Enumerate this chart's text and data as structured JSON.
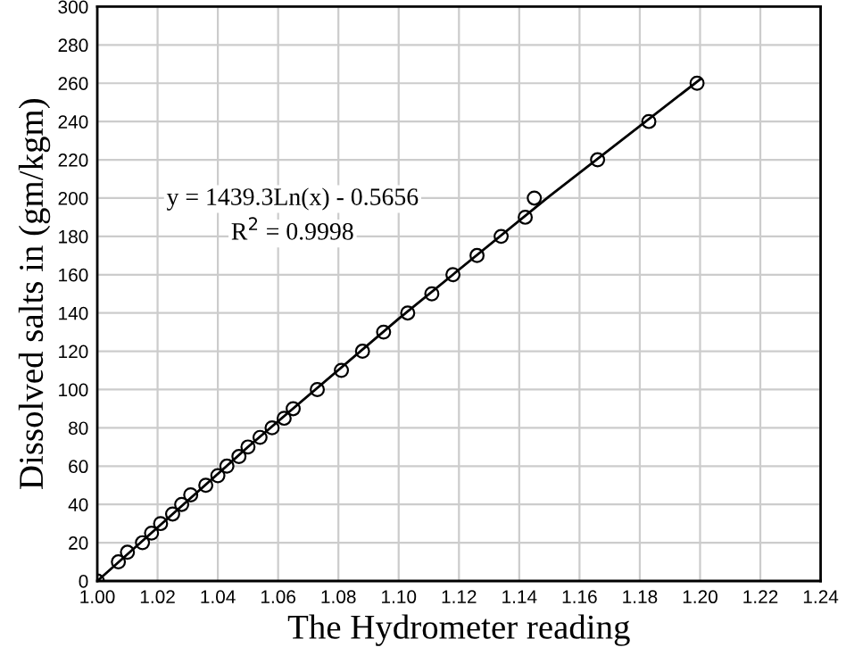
{
  "chart_data": {
    "type": "scatter",
    "xlabel": "The Hydrometer reading",
    "ylabel": "Dissolved salts in (gm/kgm)",
    "annotations": [
      "y = 1439.3Ln(x) - 0.5656",
      "R$^{2}$ = 0.9998"
    ],
    "series": [
      {
        "type": "scatter",
        "color": "#000000",
        "marker": "circle",
        "x": [
          1.0,
          1.007,
          1.01,
          1.015,
          1.018,
          1.021,
          1.025,
          1.028,
          1.031,
          1.036,
          1.04,
          1.043,
          1.047,
          1.05,
          1.054,
          1.058,
          1.062,
          1.065,
          1.073,
          1.081,
          1.088,
          1.095,
          1.103,
          1.111,
          1.118,
          1.126,
          1.134,
          1.142,
          1.145,
          1.166,
          1.183,
          1.199
        ],
        "values": [
          0,
          10,
          15,
          20,
          25,
          30,
          35,
          40,
          45,
          50,
          55,
          60,
          65,
          70,
          75,
          80,
          85,
          90,
          100,
          110,
          120,
          130,
          140,
          150,
          160,
          170,
          180,
          190,
          200,
          220,
          240,
          260
        ]
      },
      {
        "type": "line",
        "color": "#000000",
        "line_style": "solid",
        "x": [
          1.0,
          1.05,
          1.1,
          1.15,
          1.2
        ],
        "values": [
          0,
          70,
          137,
          201,
          262
        ]
      }
    ],
    "xlim": [
      1.0,
      1.24
    ],
    "xticks": [
      {
        "value": 1.0,
        "label": "1.00"
      },
      {
        "value": 1.02,
        "label": "1.02"
      },
      {
        "value": 1.04,
        "label": "1.04"
      },
      {
        "value": 1.06,
        "label": "1.06"
      },
      {
        "value": 1.08,
        "label": "1.08"
      },
      {
        "value": 1.1,
        "label": "1.10"
      },
      {
        "value": 1.12,
        "label": "1.12"
      },
      {
        "value": 1.14,
        "label": "1.14"
      },
      {
        "value": 1.16,
        "label": "1.16"
      },
      {
        "value": 1.18,
        "label": "1.18"
      },
      {
        "value": 1.2,
        "label": "1.20"
      },
      {
        "value": 1.22,
        "label": "1.22"
      },
      {
        "value": 1.24,
        "label": "1.24"
      }
    ],
    "ylim": [
      0,
      300
    ],
    "yticks": [
      0,
      20,
      40,
      60,
      80,
      100,
      120,
      140,
      160,
      180,
      200,
      220,
      240,
      260,
      280,
      300
    ],
    "grid": true,
    "legend": false
  }
}
